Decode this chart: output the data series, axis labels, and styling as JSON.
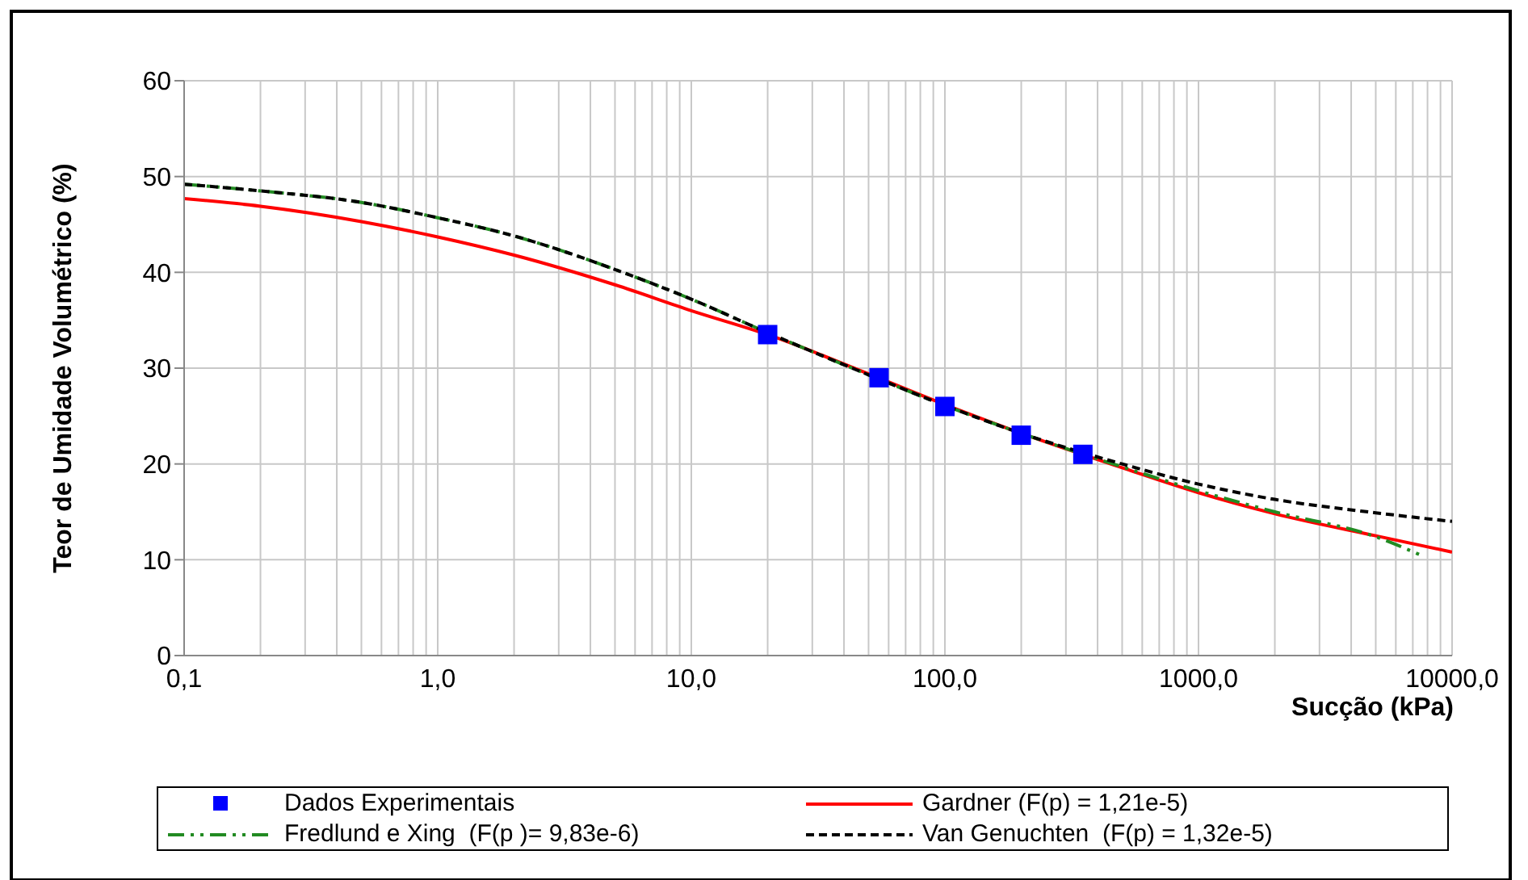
{
  "chart_data": {
    "type": "line",
    "xlabel": "Sucção (kPa)",
    "ylabel": "Teor de Umidade Volumétrico (%)",
    "log": "x",
    "xlim": [
      0.1,
      10000
    ],
    "ylim": [
      0,
      60
    ],
    "xticks": [
      {
        "value": 0.1,
        "label": "0,1"
      },
      {
        "value": 0.2,
        "label": null
      },
      {
        "value": 0.3,
        "label": null
      },
      {
        "value": 0.4,
        "label": null
      },
      {
        "value": 0.5,
        "label": null
      },
      {
        "value": 0.6,
        "label": null
      },
      {
        "value": 0.7,
        "label": null
      },
      {
        "value": 0.8,
        "label": null
      },
      {
        "value": 0.9,
        "label": null
      },
      {
        "value": 1,
        "label": "1,0"
      },
      {
        "value": 2,
        "label": null
      },
      {
        "value": 3,
        "label": null
      },
      {
        "value": 4,
        "label": null
      },
      {
        "value": 5,
        "label": null
      },
      {
        "value": 6,
        "label": null
      },
      {
        "value": 7,
        "label": null
      },
      {
        "value": 8,
        "label": null
      },
      {
        "value": 9,
        "label": null
      },
      {
        "value": 10,
        "label": "10,0"
      },
      {
        "value": 20,
        "label": null
      },
      {
        "value": 30,
        "label": null
      },
      {
        "value": 40,
        "label": null
      },
      {
        "value": 50,
        "label": null
      },
      {
        "value": 60,
        "label": null
      },
      {
        "value": 70,
        "label": null
      },
      {
        "value": 80,
        "label": null
      },
      {
        "value": 90,
        "label": null
      },
      {
        "value": 100,
        "label": "100,0"
      },
      {
        "value": 200,
        "label": null
      },
      {
        "value": 300,
        "label": null
      },
      {
        "value": 400,
        "label": null
      },
      {
        "value": 500,
        "label": null
      },
      {
        "value": 600,
        "label": null
      },
      {
        "value": 700,
        "label": null
      },
      {
        "value": 800,
        "label": null
      },
      {
        "value": 900,
        "label": null
      },
      {
        "value": 1000,
        "label": "1000,0"
      },
      {
        "value": 2000,
        "label": null
      },
      {
        "value": 3000,
        "label": null
      },
      {
        "value": 4000,
        "label": null
      },
      {
        "value": 5000,
        "label": null
      },
      {
        "value": 6000,
        "label": null
      },
      {
        "value": 7000,
        "label": null
      },
      {
        "value": 8000,
        "label": null
      },
      {
        "value": 9000,
        "label": null
      },
      {
        "value": 10000,
        "label": "10000,0"
      }
    ],
    "yticks": [
      0,
      10,
      20,
      30,
      40,
      50,
      60
    ],
    "grid": true,
    "legend": "bottom",
    "series": [
      {
        "name": "Dados Experimentais",
        "type": "scatter",
        "marker": "square",
        "color": "#0000ff",
        "x": [
          20,
          55,
          100,
          200,
          350
        ],
        "values": [
          33.5,
          29,
          26,
          23,
          21
        ]
      },
      {
        "name": "Gardner (F(p) = 1,21e-5)",
        "line_style": "solid",
        "color": "#ff0000",
        "x": [
          0.1,
          0.2,
          0.5,
          1,
          2,
          5,
          10,
          20,
          50,
          100,
          200,
          500,
          1000,
          2000,
          5000,
          10000
        ],
        "values": [
          47.7,
          46.9,
          45.3,
          43.7,
          41.8,
          38.7,
          36,
          33.5,
          29.4,
          26.2,
          23.2,
          19.6,
          17,
          14.8,
          12.5,
          10.8
        ]
      },
      {
        "name": "Fredlund e Xing  (F(p )= 9,83e-6)",
        "line_style": "dashdot",
        "color": "#228b22",
        "x": [
          0.1,
          0.2,
          0.5,
          1,
          2,
          5,
          10,
          20,
          50,
          100,
          200,
          500,
          1000,
          2000,
          5000,
          7500
        ],
        "values": [
          49.2,
          48.5,
          47.3,
          45.7,
          43.8,
          40.3,
          37.2,
          33.7,
          29.3,
          26.1,
          23.2,
          19.7,
          17.2,
          15,
          12.4,
          10.5
        ]
      },
      {
        "name": "Van Genuchten  (F(p) = 1,32e-5)",
        "line_style": "dashed",
        "color": "#000000",
        "x": [
          0.1,
          0.2,
          0.5,
          1,
          2,
          5,
          10,
          20,
          50,
          100,
          200,
          500,
          1000,
          2000,
          5000,
          10000
        ],
        "values": [
          49.2,
          48.5,
          47.3,
          45.7,
          43.8,
          40.3,
          37.2,
          33.7,
          29.3,
          26.1,
          23.2,
          20,
          17.9,
          16.3,
          14.9,
          14
        ]
      }
    ]
  }
}
